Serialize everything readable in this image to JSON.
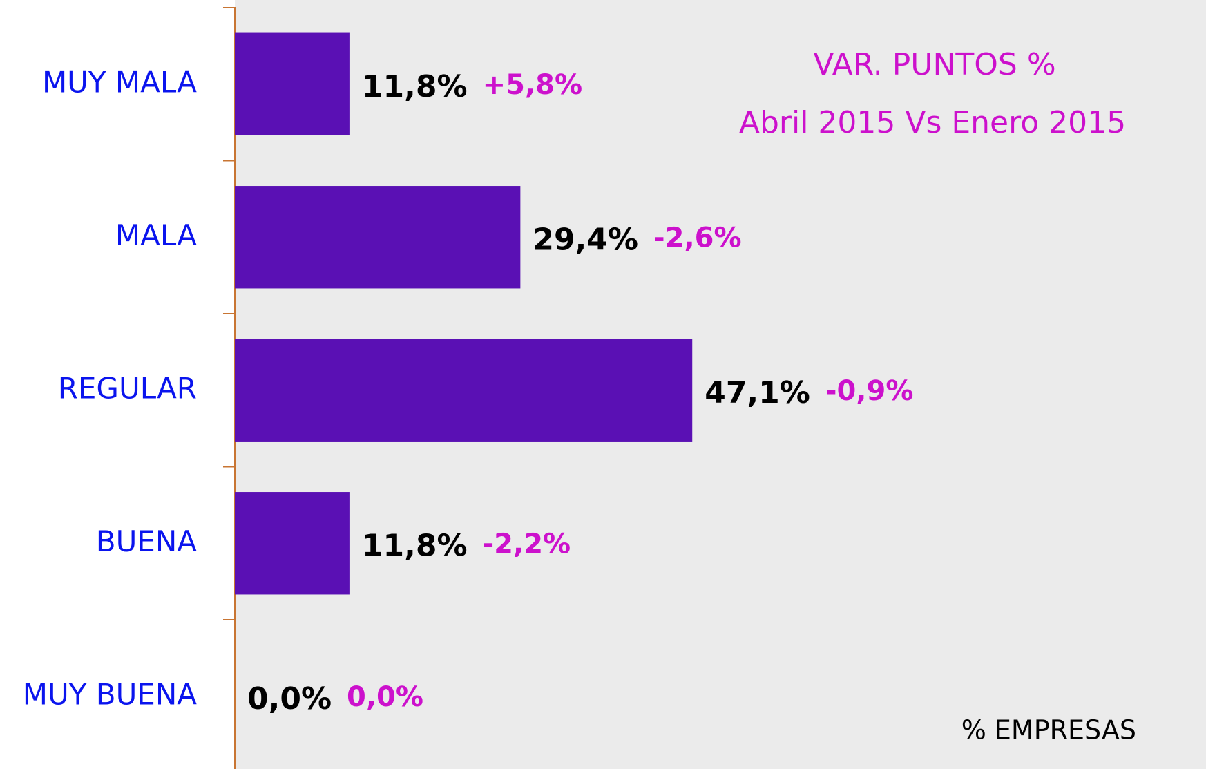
{
  "chart_data": {
    "type": "barh",
    "title": "VAR. PUNTOS %",
    "subtitle": "Abril 2015 Vs Enero 2015",
    "x_label": "% EMPRESAS",
    "categories": [
      "MUY MALA",
      "MALA",
      "REGULAR",
      "BUENA",
      "MUY BUENA"
    ],
    "values": [
      11.8,
      29.4,
      47.1,
      11.8,
      0.0
    ],
    "value_labels": [
      "11,8%",
      "29,4%",
      "47,1%",
      "11,8%",
      "0,0%"
    ],
    "change_labels": [
      "+5,8%",
      "-2,6%",
      "-0,9%",
      "-2,2%",
      "0,0%"
    ],
    "color": "#5a10b4",
    "xlim": [
      0,
      100
    ]
  }
}
